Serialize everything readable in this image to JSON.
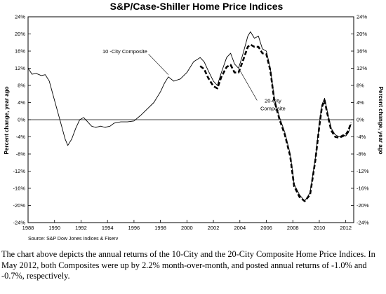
{
  "chart_data": {
    "type": "line",
    "title": "S&P/Case-Shiller Home Price Indices",
    "ylabel_left": "Percent change, year ago",
    "ylabel_right": "Percent change, year ago",
    "xlim": [
      1988,
      2012.6
    ],
    "ylim": [
      -24,
      24
    ],
    "x_ticks": [
      "1988",
      "1990",
      "1992",
      "1994",
      "1996",
      "1998",
      "2000",
      "2002",
      "2004",
      "2006",
      "2008",
      "2010",
      "2012"
    ],
    "y_ticks": [
      "24%",
      "20%",
      "16%",
      "12%",
      "8%",
      "4%",
      "0%",
      "-4%",
      "-8%",
      "-12%",
      "-16%",
      "-20%",
      "-24%"
    ],
    "grid": false,
    "series": [
      {
        "name": "10-City Composite",
        "style": "solid",
        "color": "#000000",
        "points": [
          [
            1988.0,
            12.0
          ],
          [
            1988.3,
            10.6
          ],
          [
            1988.6,
            10.8
          ],
          [
            1989.0,
            10.3
          ],
          [
            1989.3,
            10.5
          ],
          [
            1989.6,
            9.0
          ],
          [
            1990.0,
            4.5
          ],
          [
            1990.4,
            0.0
          ],
          [
            1990.8,
            -4.5
          ],
          [
            1991.0,
            -6.0
          ],
          [
            1991.3,
            -4.5
          ],
          [
            1991.6,
            -2.0
          ],
          [
            1991.9,
            0.0
          ],
          [
            1992.2,
            0.5
          ],
          [
            1992.5,
            -0.5
          ],
          [
            1992.8,
            -1.5
          ],
          [
            1993.1,
            -1.8
          ],
          [
            1993.5,
            -1.5
          ],
          [
            1993.8,
            -1.8
          ],
          [
            1994.2,
            -1.5
          ],
          [
            1994.5,
            -0.8
          ],
          [
            1995.0,
            -0.5
          ],
          [
            1995.5,
            -0.5
          ],
          [
            1996.0,
            -0.3
          ],
          [
            1996.5,
            1.0
          ],
          [
            1997.0,
            2.5
          ],
          [
            1997.5,
            4.0
          ],
          [
            1998.0,
            6.5
          ],
          [
            1998.3,
            8.5
          ],
          [
            1998.6,
            10.0
          ],
          [
            1999.0,
            9.0
          ],
          [
            1999.5,
            9.5
          ],
          [
            2000.0,
            11.0
          ],
          [
            2000.5,
            13.5
          ],
          [
            2001.0,
            14.5
          ],
          [
            2001.3,
            13.5
          ],
          [
            2001.6,
            11.5
          ],
          [
            2002.0,
            9.0
          ],
          [
            2002.3,
            8.0
          ],
          [
            2002.6,
            11.0
          ],
          [
            2003.0,
            14.5
          ],
          [
            2003.3,
            15.5
          ],
          [
            2003.6,
            13.0
          ],
          [
            2003.9,
            12.0
          ],
          [
            2004.2,
            15.0
          ],
          [
            2004.6,
            19.5
          ],
          [
            2004.8,
            20.5
          ],
          [
            2005.1,
            19.0
          ],
          [
            2005.4,
            19.5
          ],
          [
            2005.7,
            16.5
          ],
          [
            2006.0,
            16.0
          ],
          [
            2006.3,
            12.0
          ],
          [
            2006.6,
            5.0
          ],
          [
            2007.0,
            0.5
          ],
          [
            2007.4,
            -3.0
          ],
          [
            2007.8,
            -8.0
          ],
          [
            2008.1,
            -15.0
          ],
          [
            2008.5,
            -17.5
          ],
          [
            2008.9,
            -19.0
          ],
          [
            2009.3,
            -17.0
          ],
          [
            2009.7,
            -9.0
          ],
          [
            2010.0,
            -1.0
          ],
          [
            2010.2,
            3.5
          ],
          [
            2010.4,
            5.0
          ],
          [
            2010.6,
            2.0
          ],
          [
            2010.9,
            -2.0
          ],
          [
            2011.2,
            -3.5
          ],
          [
            2011.5,
            -4.0
          ],
          [
            2011.8,
            -3.5
          ],
          [
            2012.0,
            -3.8
          ],
          [
            2012.2,
            -3.0
          ],
          [
            2012.4,
            -1.0
          ]
        ]
      },
      {
        "name": "20-City Composite",
        "style": "dashed",
        "color": "#000000",
        "points": [
          [
            2001.0,
            12.5
          ],
          [
            2001.3,
            11.8
          ],
          [
            2001.6,
            9.8
          ],
          [
            2002.0,
            7.8
          ],
          [
            2002.3,
            7.3
          ],
          [
            2002.6,
            10.0
          ],
          [
            2003.0,
            12.3
          ],
          [
            2003.3,
            12.8
          ],
          [
            2003.6,
            11.0
          ],
          [
            2003.9,
            11.0
          ],
          [
            2004.2,
            13.5
          ],
          [
            2004.6,
            17.0
          ],
          [
            2004.8,
            17.5
          ],
          [
            2005.1,
            17.0
          ],
          [
            2005.4,
            17.0
          ],
          [
            2005.7,
            15.5
          ],
          [
            2006.0,
            15.3
          ],
          [
            2006.3,
            11.5
          ],
          [
            2006.6,
            4.5
          ],
          [
            2007.0,
            0.0
          ],
          [
            2007.4,
            -3.5
          ],
          [
            2007.8,
            -8.5
          ],
          [
            2008.1,
            -15.5
          ],
          [
            2008.5,
            -18.0
          ],
          [
            2008.9,
            -19.0
          ],
          [
            2009.3,
            -17.5
          ],
          [
            2009.7,
            -9.5
          ],
          [
            2010.0,
            -1.5
          ],
          [
            2010.2,
            3.0
          ],
          [
            2010.4,
            4.5
          ],
          [
            2010.6,
            1.5
          ],
          [
            2010.9,
            -2.5
          ],
          [
            2011.2,
            -4.0
          ],
          [
            2011.5,
            -4.2
          ],
          [
            2011.8,
            -3.8
          ],
          [
            2012.0,
            -3.5
          ],
          [
            2012.2,
            -2.5
          ],
          [
            2012.4,
            -0.7
          ]
        ]
      }
    ],
    "annotations": [
      {
        "text": "10 -City Composite",
        "x": 1997.0,
        "y": 15.5
      },
      {
        "text": "20-City",
        "x": 2006.5,
        "y": 4.0
      },
      {
        "text": "Composite",
        "x": 2006.5,
        "y": 2.2
      }
    ]
  },
  "source": "Source: S&P Dow Jones Indices & Fiserv",
  "caption": "The chart above depicts the annual returns of the 10-City and the 20-City Composite Home Price Indices. In May 2012, both Composites were up by 2.2% month-over-month, and posted annual returns of -1.0% and -0.7%, respectively."
}
